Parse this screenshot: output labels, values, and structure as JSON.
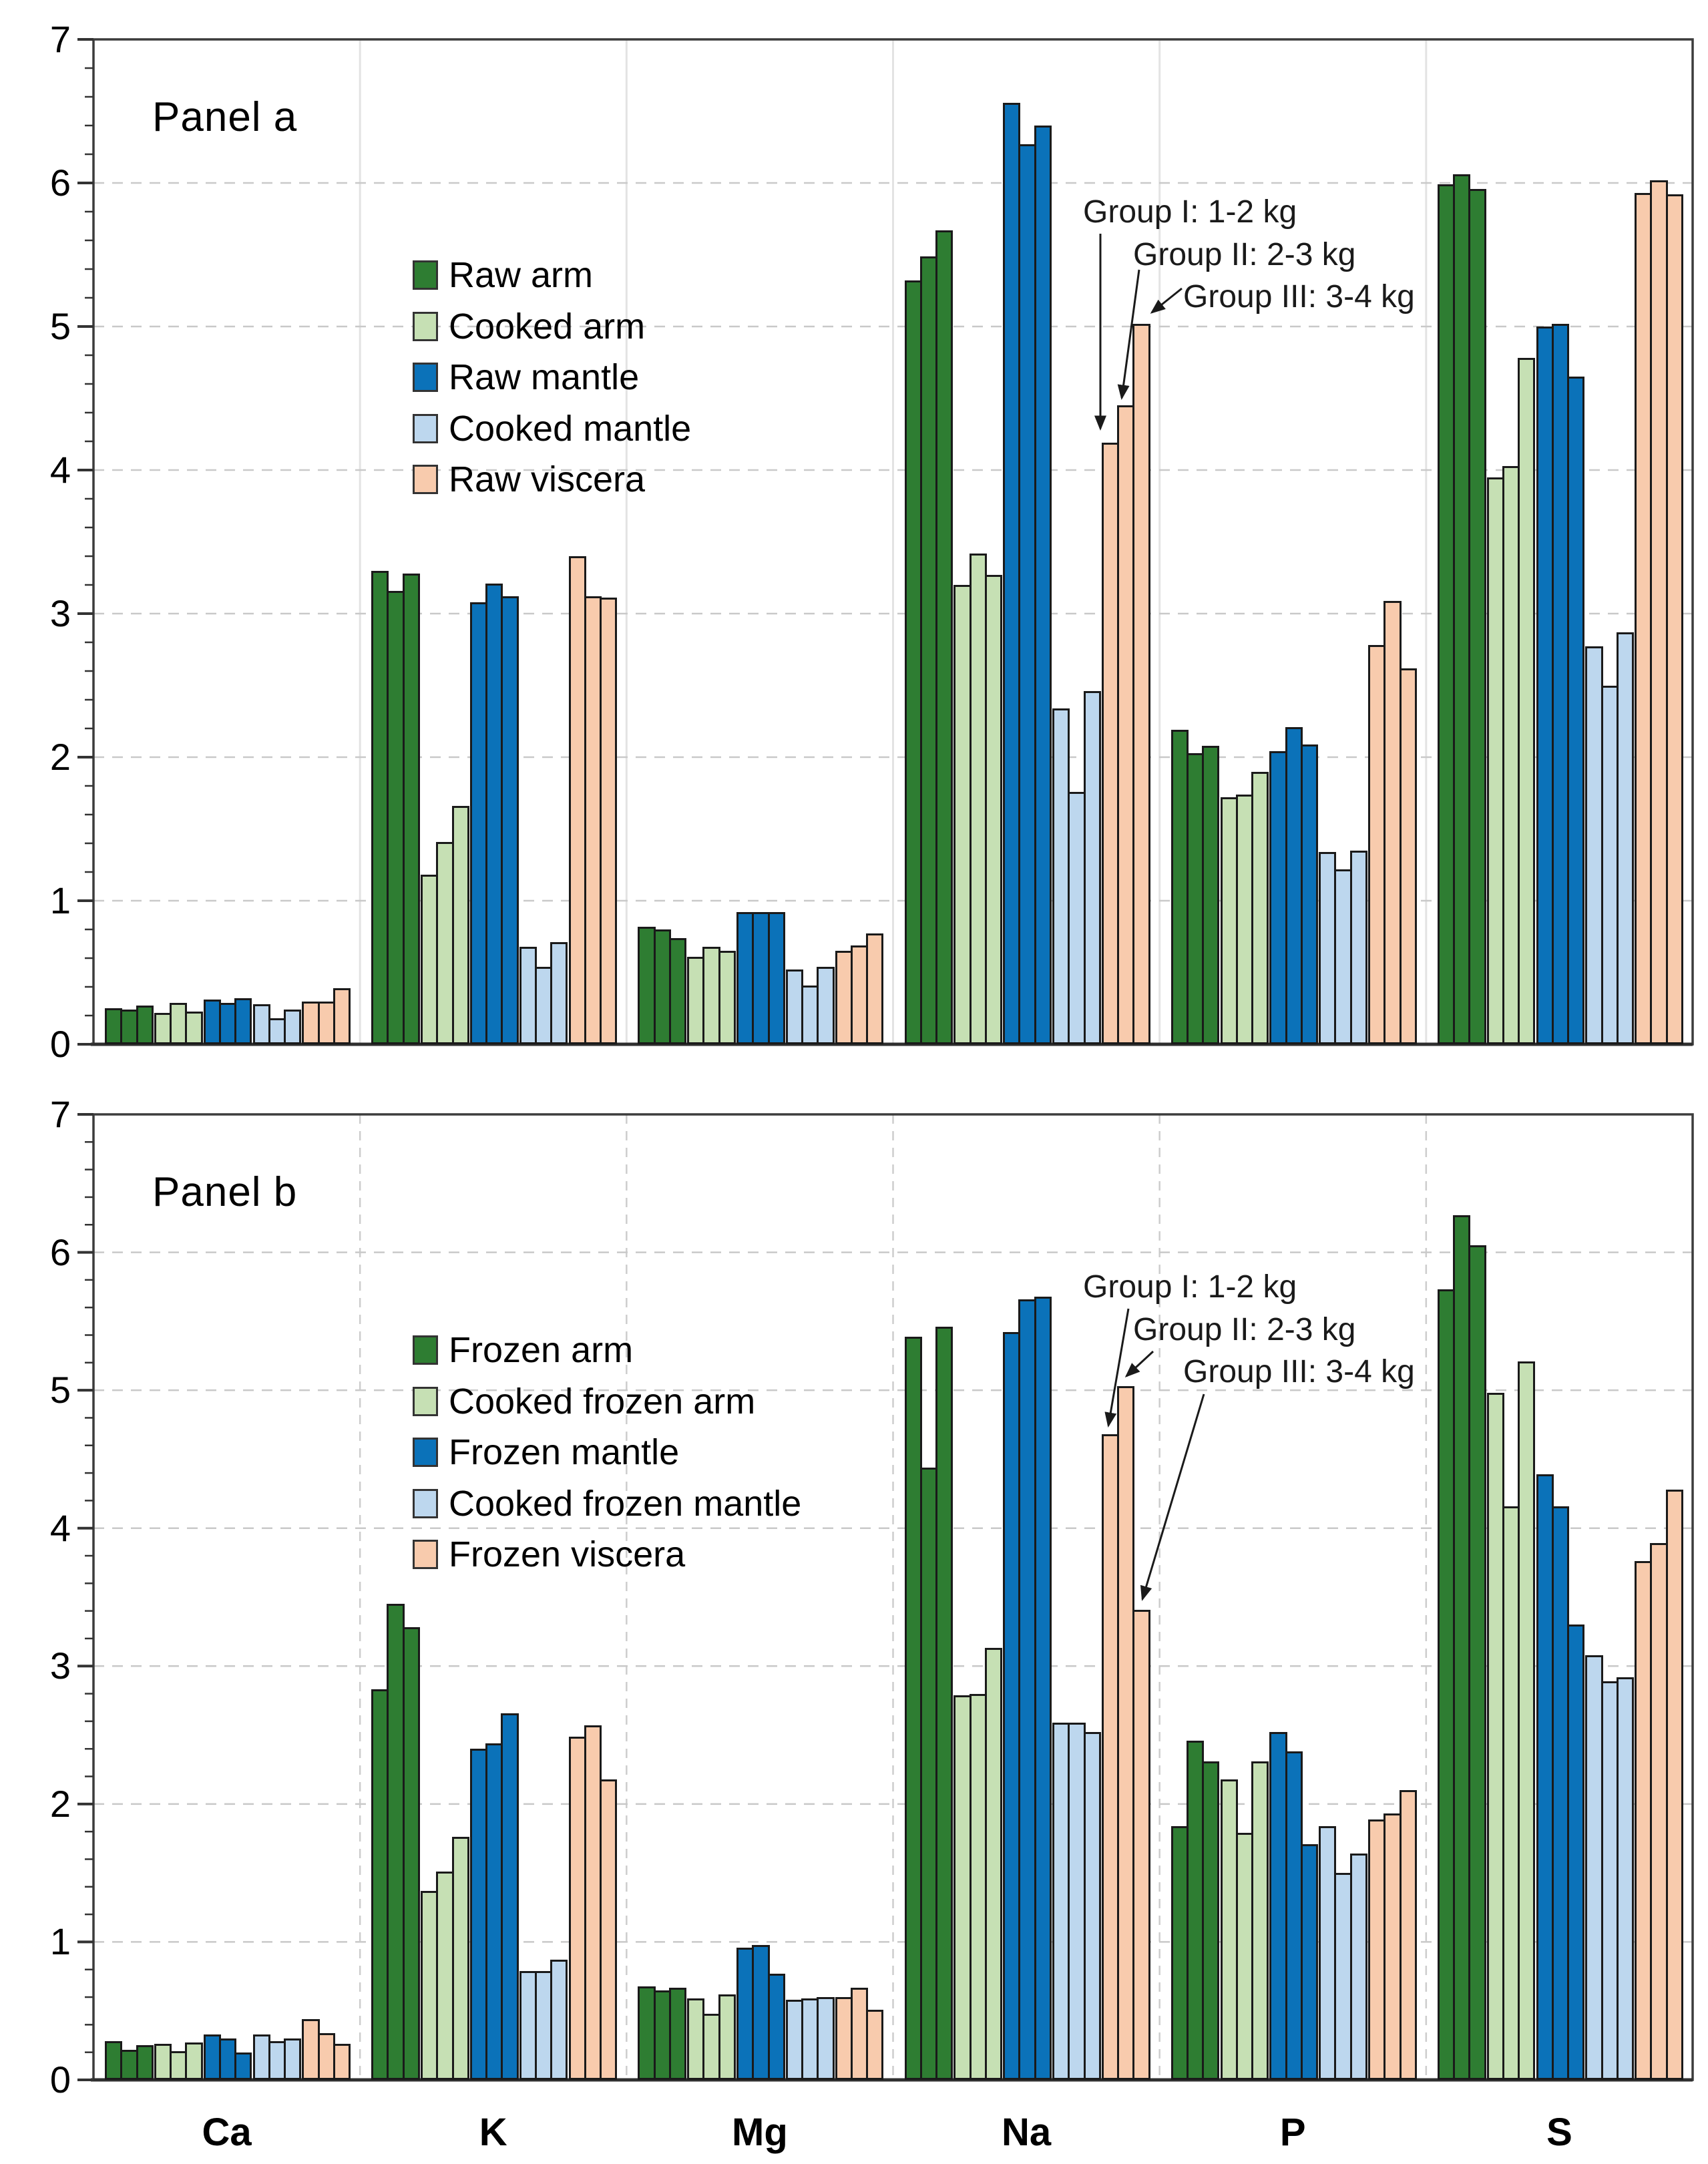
{
  "figure": {
    "y_tick_labels": [
      "0",
      "1",
      "2",
      "3",
      "4",
      "5",
      "6",
      "7"
    ],
    "group_labels": [
      "Group I",
      "Group II",
      "Group III"
    ]
  },
  "chart_data": [
    {
      "type": "bar",
      "title": "Panel a",
      "categories": [
        "Ca",
        "K",
        "Mg",
        "Na",
        "P",
        "S"
      ],
      "ylim": [
        0,
        7
      ],
      "grid": "dashed-horizontal",
      "legend_position": "upper-left-inside",
      "annotations": [
        "Group I: 1-2 kg",
        "Group II: 2-3 kg",
        "Group III: 3-4 kg"
      ],
      "group_definitions": [
        "Group I: 1-2 kg octopus",
        "Group II: 2-3 kg octopus",
        "Group III: 3-4 kg octopus"
      ],
      "series": [
        {
          "name": "Raw arm",
          "color": "#2e7d32",
          "values": {
            "Ca": [
              0.25,
              0.24,
              0.27
            ],
            "K": [
              3.3,
              3.16,
              3.28
            ],
            "Mg": [
              0.82,
              0.8,
              0.74
            ],
            "Na": [
              5.32,
              5.49,
              5.67
            ],
            "P": [
              2.19,
              2.03,
              2.08
            ],
            "S": [
              5.99,
              6.06,
              5.96
            ]
          }
        },
        {
          "name": "Cooked arm",
          "color": "#c6e0b4",
          "values": {
            "Ca": [
              0.22,
              0.29,
              0.23
            ],
            "K": [
              1.18,
              1.41,
              1.66
            ],
            "Mg": [
              0.61,
              0.68,
              0.65
            ],
            "Na": [
              3.2,
              3.42,
              3.27
            ],
            "P": [
              1.72,
              1.74,
              1.9
            ],
            "S": [
              3.95,
              4.03,
              4.78
            ]
          }
        },
        {
          "name": "Raw mantle",
          "color": "#0b72b9",
          "values": {
            "Ca": [
              0.31,
              0.29,
              0.32
            ],
            "K": [
              3.08,
              3.21,
              3.12
            ],
            "Mg": [
              0.92,
              0.92,
              0.92
            ],
            "Na": [
              6.56,
              6.27,
              6.4
            ],
            "P": [
              2.04,
              2.21,
              2.09
            ],
            "S": [
              5.0,
              5.02,
              4.65
            ]
          }
        },
        {
          "name": "Cooked mantle",
          "color": "#bdd7ee",
          "values": {
            "Ca": [
              0.28,
              0.18,
              0.24
            ],
            "K": [
              0.68,
              0.54,
              0.71
            ],
            "Mg": [
              0.52,
              0.41,
              0.54
            ],
            "Na": [
              2.34,
              1.76,
              2.46
            ],
            "P": [
              1.34,
              1.22,
              1.35
            ],
            "S": [
              2.77,
              2.5,
              2.87
            ]
          }
        },
        {
          "name": "Raw viscera",
          "color": "#f8cbad",
          "values": {
            "Ca": [
              0.3,
              0.3,
              0.39
            ],
            "K": [
              3.4,
              3.12,
              3.11
            ],
            "Mg": [
              0.65,
              0.69,
              0.77
            ],
            "Na": [
              4.19,
              4.45,
              5.02
            ],
            "P": [
              2.78,
              3.09,
              2.62
            ],
            "S": [
              5.93,
              6.02,
              5.92
            ]
          }
        }
      ]
    },
    {
      "type": "bar",
      "title": "Panel b",
      "categories": [
        "Ca",
        "K",
        "Mg",
        "Na",
        "P",
        "S"
      ],
      "ylim": [
        0,
        7
      ],
      "grid": "dashed-horizontal",
      "legend_position": "upper-left-inside",
      "annotations": [
        "Group I: 1-2 kg",
        "Group II: 2-3 kg",
        "Group III: 3-4 kg"
      ],
      "group_definitions": [
        "Group I: 1-2 kg octopus",
        "Group II: 2-3 kg octopus",
        "Group III: 3-4 kg octopus"
      ],
      "series": [
        {
          "name": "Frozen arm",
          "color": "#2e7d32",
          "values": {
            "Ca": [
              0.28,
              0.22,
              0.25
            ],
            "K": [
              2.83,
              3.45,
              3.28
            ],
            "Mg": [
              0.68,
              0.65,
              0.67
            ],
            "Na": [
              5.39,
              4.44,
              5.46
            ],
            "P": [
              1.84,
              2.46,
              2.31
            ],
            "S": [
              5.73,
              6.27,
              6.05
            ]
          }
        },
        {
          "name": "Cooked frozen arm",
          "color": "#c6e0b4",
          "values": {
            "Ca": [
              0.26,
              0.21,
              0.27
            ],
            "K": [
              1.37,
              1.51,
              1.76
            ],
            "Mg": [
              0.59,
              0.48,
              0.62
            ],
            "Na": [
              2.79,
              2.8,
              3.13
            ],
            "P": [
              2.18,
              1.79,
              2.31
            ],
            "S": [
              4.98,
              4.16,
              5.21
            ]
          }
        },
        {
          "name": "Frozen mantle",
          "color": "#0b72b9",
          "values": {
            "Ca": [
              0.33,
              0.3,
              0.2
            ],
            "K": [
              2.4,
              2.44,
              2.66
            ],
            "Mg": [
              0.96,
              0.98,
              0.77
            ],
            "Na": [
              5.42,
              5.66,
              5.68
            ],
            "P": [
              2.52,
              2.38,
              1.71
            ],
            "S": [
              4.39,
              4.16,
              3.3
            ]
          }
        },
        {
          "name": "Cooked frozen mantle",
          "color": "#bdd7ee",
          "values": {
            "Ca": [
              0.33,
              0.28,
              0.3
            ],
            "K": [
              0.79,
              0.79,
              0.87
            ],
            "Mg": [
              0.58,
              0.59,
              0.6
            ],
            "Na": [
              2.59,
              2.59,
              2.52
            ],
            "P": [
              1.84,
              1.5,
              1.64
            ],
            "S": [
              3.08,
              2.89,
              2.92
            ]
          }
        },
        {
          "name": "Frozen viscera",
          "color": "#f8cbad",
          "values": {
            "Ca": [
              0.44,
              0.34,
              0.26
            ],
            "K": [
              2.49,
              2.57,
              2.18
            ],
            "Mg": [
              0.6,
              0.67,
              0.51
            ],
            "Na": [
              4.68,
              5.03,
              3.41
            ],
            "P": [
              1.89,
              1.93,
              2.1
            ],
            "S": [
              3.76,
              3.89,
              4.28
            ]
          }
        }
      ]
    }
  ]
}
